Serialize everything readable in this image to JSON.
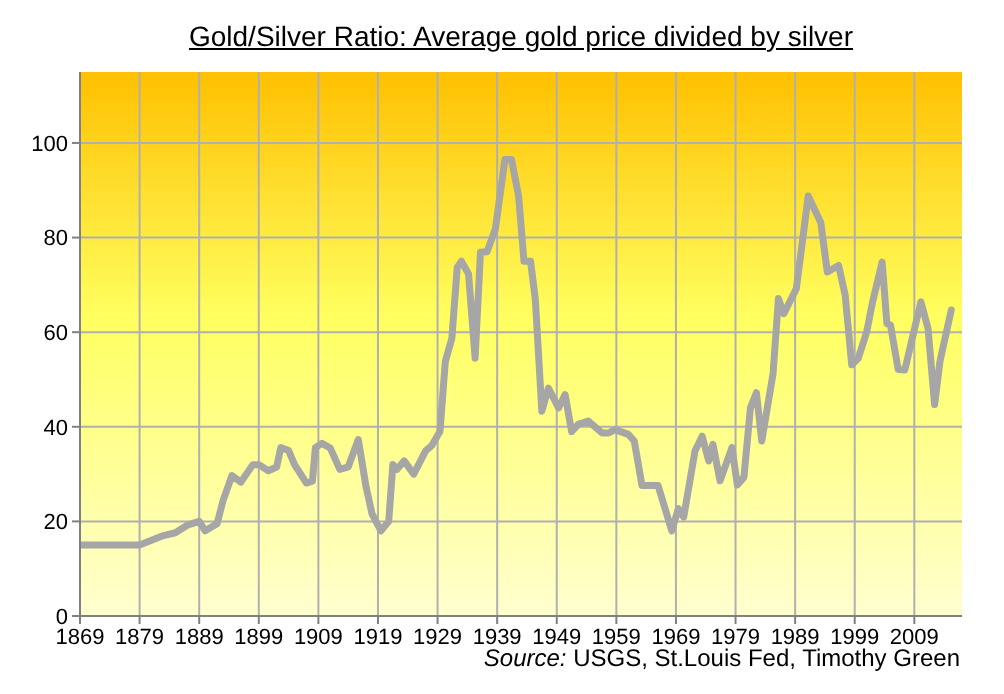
{
  "chart_data": {
    "type": "line",
    "title": "Gold/Silver Ratio: Average gold price divided by silver",
    "annotations": [
      "Source: USGS, St.Louis Fed, Timothy Green"
    ],
    "xlim": [
      1869,
      2017
    ],
    "xticks": [
      1869,
      1879,
      1889,
      1899,
      1909,
      1919,
      1929,
      1939,
      1949,
      1959,
      1969,
      1979,
      1989,
      1999,
      2009
    ],
    "ylim": [
      0,
      115
    ],
    "yticks": [
      0,
      20,
      40,
      60,
      80,
      100
    ],
    "grid": true,
    "marker": "none",
    "line_style": "solid",
    "series": [
      {
        "color": "#a6a6a6",
        "x": [
          1869,
          1879,
          1883,
          1885,
          1887,
          1889,
          1890,
          1892,
          1893,
          1894.5,
          1896,
          1898,
          1899,
          1900.6,
          1902,
          1902.7,
          1904,
          1905,
          1907,
          1908,
          1908.5,
          1909.6,
          1911,
          1912.6,
          1914,
          1915.7,
          1917,
          1918,
          1919.5,
          1920.8,
          1921.5,
          1922.2,
          1923.4,
          1925,
          1927,
          1928,
          1929.4,
          1930.3,
          1931.4,
          1932.3,
          1933,
          1934.2,
          1935.3,
          1936.2,
          1937.3,
          1938.7,
          1940.3,
          1941.4,
          1942.6,
          1943.5,
          1944.6,
          1945.4,
          1946.5,
          1947.6,
          1949.3,
          1950.4,
          1951.5,
          1952.6,
          1954.3,
          1956.6,
          1957.7,
          1958.8,
          1961,
          1962,
          1963.3,
          1966,
          1968.3,
          1969.4,
          1970.3,
          1972.2,
          1973.4,
          1974.5,
          1975.2,
          1976.4,
          1978.4,
          1979.3,
          1980.4,
          1981.5,
          1982.5,
          1983.4,
          1985.3,
          1986.2,
          1987.1,
          1989.2,
          1991.2,
          1993.3,
          1994.4,
          1996.3,
          1997.4,
          1998.5,
          1999.6,
          2001,
          2002,
          2003.6,
          2004.4,
          2005,
          2006.3,
          2007.4,
          2010.1,
          2011.3,
          2012.4,
          2013.3,
          2015.2
        ],
        "values": [
          15,
          15,
          17,
          17.6,
          19.2,
          20,
          18,
          19.5,
          24.4,
          29.7,
          28.3,
          32,
          32,
          30.7,
          31.5,
          35.6,
          35,
          32,
          28.1,
          28.5,
          35.6,
          36.5,
          35.5,
          31,
          31.5,
          37.3,
          27.3,
          21.6,
          18,
          20,
          32,
          31,
          32.8,
          30,
          34.9,
          36,
          39,
          53.8,
          58.7,
          73.7,
          75,
          72.3,
          54.5,
          76.9,
          77,
          81.8,
          96.5,
          96.5,
          88.8,
          75,
          75,
          67,
          43.3,
          48.2,
          44,
          46.8,
          39,
          40.5,
          41.2,
          38.7,
          38.7,
          39.4,
          38.4,
          37,
          27.6,
          27.6,
          18,
          22.7,
          20.9,
          34.9,
          38,
          32.8,
          36.3,
          28.6,
          35.6,
          27.7,
          29.3,
          44,
          47.2,
          37,
          51.3,
          67.1,
          63.9,
          69.2,
          88.8,
          83.2,
          72.7,
          74.1,
          67.8,
          53.1,
          54.5,
          60,
          66.4,
          74.8,
          61.8,
          61.5,
          52.1,
          52,
          66.4,
          60.8,
          44.7,
          53.8,
          64.7
        ]
      }
    ]
  }
}
